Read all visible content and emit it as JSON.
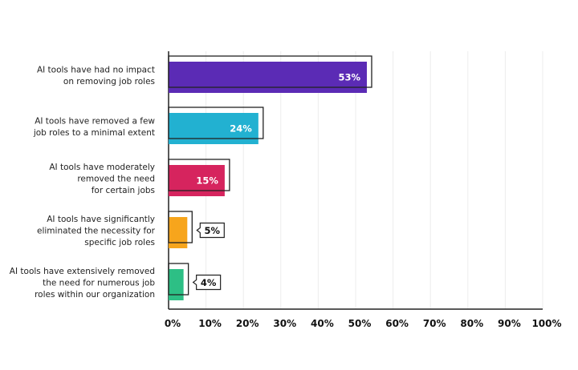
{
  "chart_data": {
    "type": "bar",
    "orientation": "horizontal",
    "title": "",
    "xlabel": "",
    "ylabel": "",
    "categories": [
      [
        "AI tools have had no impact",
        "on removing job roles"
      ],
      [
        "AI tools have removed a few",
        "job roles to a minimal extent"
      ],
      [
        "AI tools have moderately",
        "removed the need",
        "for certain jobs"
      ],
      [
        "AI tools have significantly",
        "eliminated the necessity for",
        "specific job roles"
      ],
      [
        "AI tools have extensively removed",
        "the need for numerous job",
        "roles within our organization"
      ]
    ],
    "values": [
      53,
      24,
      15,
      5,
      4
    ],
    "data_labels": [
      "53%",
      "24%",
      "15%",
      "5%",
      "4%"
    ],
    "colors": [
      "#5b2bb5",
      "#22b1d1",
      "#d6245e",
      "#f7a51c",
      "#2dbf85"
    ],
    "xlim": [
      0,
      100
    ],
    "xticks": [
      0,
      10,
      20,
      30,
      40,
      50,
      60,
      70,
      80,
      90,
      100
    ],
    "xtick_labels": [
      "0%",
      "10%",
      "20%",
      "30%",
      "40%",
      "50%",
      "60%",
      "70%",
      "80%",
      "90%",
      "100%"
    ],
    "grid": "vertical",
    "legend": "none"
  }
}
